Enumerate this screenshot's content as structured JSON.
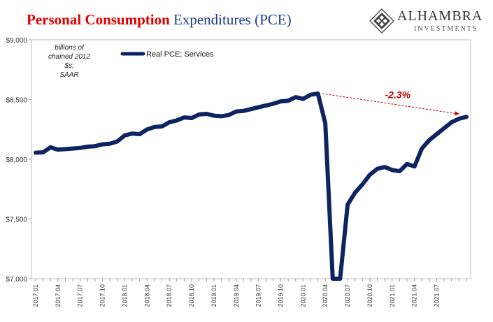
{
  "header": {
    "title_part1": "Personal Consumption",
    "title_part2": "Expenditures (PCE)"
  },
  "logo": {
    "name": "ALHAMBRA",
    "subtitle": "INVESTMENTS"
  },
  "chart_data": {
    "type": "line",
    "ylabel_note": [
      "billions of",
      "chained 2012 $s;",
      "SAAR"
    ],
    "ylim": [
      7000,
      9000
    ],
    "yticks": [
      7000,
      7500,
      8000,
      8500,
      9000
    ],
    "ytick_labels": [
      "$7,000",
      "$7,500",
      "$8,000",
      "$8,500",
      "$9,000"
    ],
    "tick_labels": [
      "2017.01",
      "2017.04",
      "2017.07",
      "2017.10",
      "2018.01",
      "2018.04",
      "2018.07",
      "2018.10",
      "2019.01",
      "2019.04",
      "2019.07",
      "2019.10",
      "2020.01",
      "2020.04",
      "2020.07",
      "2020.10",
      "2021.01",
      "2021.04",
      "2021.07"
    ],
    "legend": "top-left",
    "grid": false,
    "series": [
      {
        "name": "Real PCE; Services",
        "color": "#0d2461",
        "values": [
          8055,
          8058,
          8100,
          8080,
          8085,
          8090,
          8095,
          8105,
          8110,
          8125,
          8130,
          8150,
          8200,
          8215,
          8210,
          8250,
          8270,
          8275,
          8310,
          8325,
          8350,
          8345,
          8375,
          8380,
          8365,
          8360,
          8370,
          8400,
          8405,
          8420,
          8435,
          8450,
          8465,
          8485,
          8490,
          8520,
          8505,
          8540,
          8550,
          8300,
          7000,
          7000,
          7620,
          7720,
          7790,
          7870,
          7920,
          7935,
          7910,
          7900,
          7960,
          7940,
          8090,
          8160,
          8210,
          8260,
          8310,
          8340,
          8355
        ]
      }
    ],
    "annotation": {
      "text": "-2.3%",
      "color": "#c00000"
    }
  }
}
